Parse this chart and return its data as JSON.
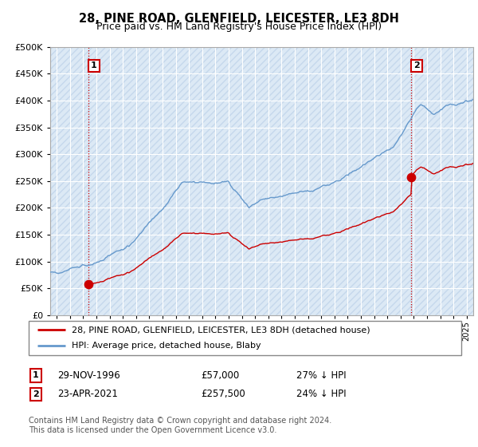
{
  "title": "28, PINE ROAD, GLENFIELD, LEICESTER, LE3 8DH",
  "subtitle": "Price paid vs. HM Land Registry's House Price Index (HPI)",
  "background_color": "#ffffff",
  "plot_bg_color": "#dce9f5",
  "grid_color": "#ffffff",
  "sale1_year": 1996,
  "sale1_month": 11,
  "sale1_price": 57000,
  "sale1_label": "1",
  "sale2_year": 2021,
  "sale2_month": 4,
  "sale2_price": 257500,
  "sale2_label": "2",
  "legend_entry1": "28, PINE ROAD, GLENFIELD, LEICESTER, LE3 8DH (detached house)",
  "legend_entry2": "HPI: Average price, detached house, Blaby",
  "table_row1": [
    "1",
    "29-NOV-1996",
    "£57,000",
    "27% ↓ HPI"
  ],
  "table_row2": [
    "2",
    "23-APR-2021",
    "£257,500",
    "24% ↓ HPI"
  ],
  "footer": "Contains HM Land Registry data © Crown copyright and database right 2024.\nThis data is licensed under the Open Government Licence v3.0.",
  "ylim": [
    0,
    500000
  ],
  "yticks": [
    0,
    50000,
    100000,
    150000,
    200000,
    250000,
    300000,
    350000,
    400000,
    450000,
    500000
  ],
  "red_line_color": "#cc0000",
  "blue_line_color": "#6699cc",
  "dot_color": "#cc0000",
  "dashed_line_color": "#cc0000",
  "hatch_color": "#bbbbbb",
  "start_year": 1994,
  "end_year": 2025
}
